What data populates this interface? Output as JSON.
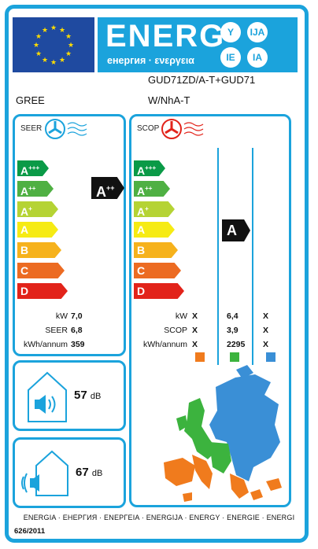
{
  "header": {
    "energy_word": "ENERG",
    "energy_sub": "енергия · ενεργεια",
    "circles": [
      "Y",
      "IJA",
      "IE",
      "IA"
    ],
    "model": "GUD71ZD/A-T+GUD71",
    "model2": "W/NhA-T",
    "brand": "GREE"
  },
  "seer": {
    "label": "SEER",
    "classes": [
      "A+++",
      "A++",
      "A+",
      "A",
      "B",
      "C",
      "D"
    ],
    "rating": "A++",
    "rows": [
      {
        "label": "kW",
        "value": "7,0"
      },
      {
        "label": "SEER",
        "value": "6,8"
      },
      {
        "label": "kWh/annum",
        "value": "359"
      }
    ]
  },
  "scop": {
    "label": "SCOP",
    "classes": [
      "A+++",
      "A++",
      "A+",
      "A",
      "B",
      "C",
      "D"
    ],
    "rating": "A",
    "rows": [
      {
        "label": "kW",
        "c1": "X",
        "c2": "6,4",
        "c3": "X"
      },
      {
        "label": "SCOP",
        "c1": "X",
        "c2": "3,9",
        "c3": "X"
      },
      {
        "label": "kWh/annum",
        "c1": "X",
        "c2": "2295",
        "c3": "X"
      }
    ],
    "zone_colors": [
      "#f07b1d",
      "#3cb33e",
      "#3a8fd6"
    ]
  },
  "noise": {
    "indoor": "57",
    "outdoor": "67",
    "unit": "dB"
  },
  "footer": {
    "languages": "ENERGIA · ЕНЕРГИЯ · ΕΝΕΡΓΕΙΑ · ENERGIJA · ENERGY · ENERGIE · ENERGI",
    "regulation": "626/2011"
  },
  "colors": {
    "frame": "#1ba3dc",
    "class_colors": [
      "#0a9a47",
      "#4fb043",
      "#b5d334",
      "#f6eb14",
      "#f6b21c",
      "#ec6b22",
      "#e2231a"
    ]
  }
}
